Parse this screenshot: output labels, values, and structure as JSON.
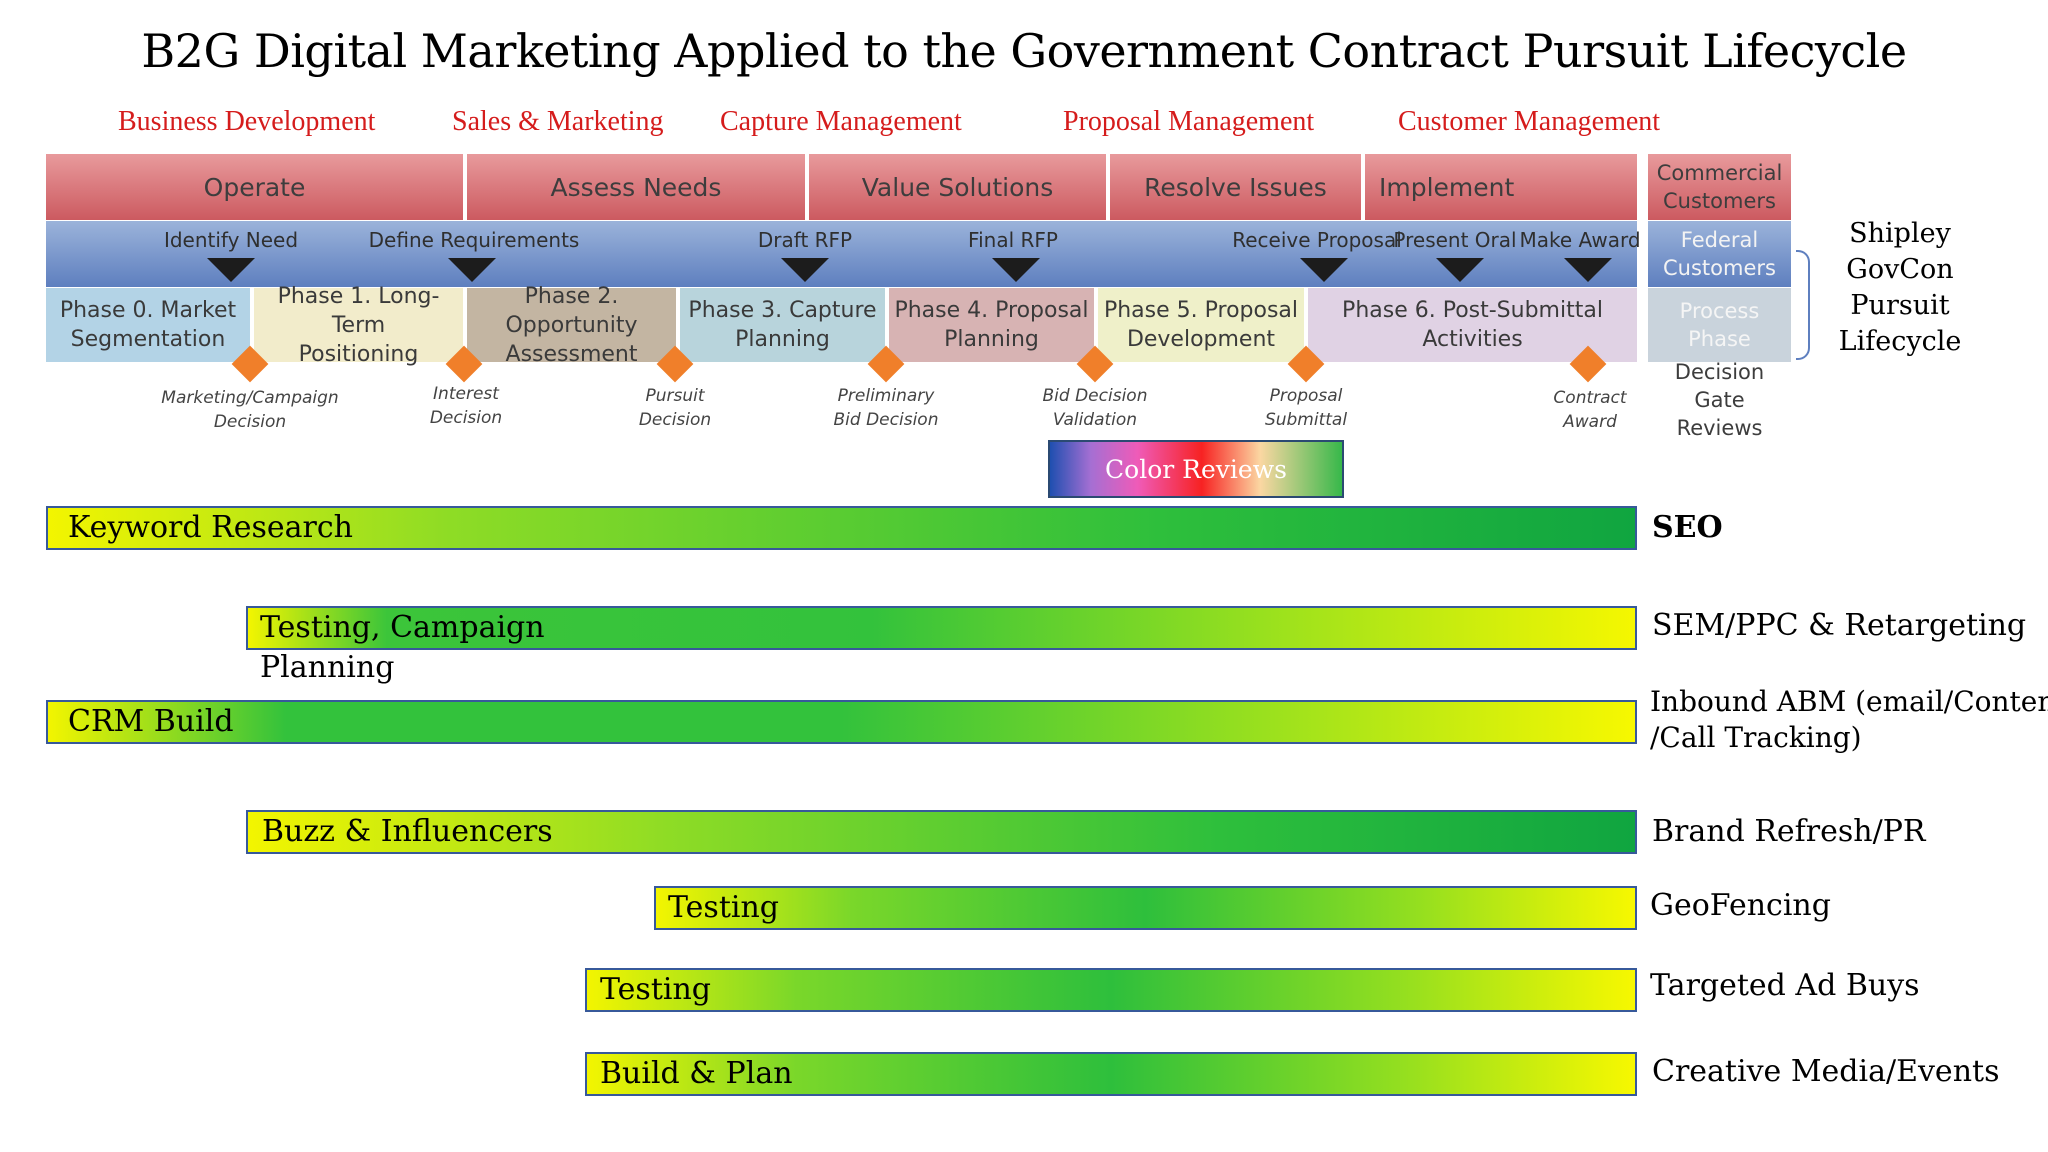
{
  "title": "B2G Digital Marketing Applied to the Government Contract Pursuit Lifecycle",
  "stages": [
    "Business Development",
    "Sales & Marketing",
    "Capture Management",
    "Proposal Management",
    "Customer Management"
  ],
  "commercial_steps": [
    "Operate",
    "Assess Needs",
    "Value Solutions",
    "Resolve Issues",
    "Implement"
  ],
  "federal_steps": [
    "Identify Need",
    "Define Requirements",
    "Draft RFP",
    "Final RFP",
    "Receive Proposal",
    "Present Oral",
    "Make Award"
  ],
  "phases": [
    {
      "line1": "Phase 0. Market",
      "line2": "Segmentation",
      "color": "#b3d3e6"
    },
    {
      "line1": "Phase 1. Long-Term",
      "line2": "Positioning",
      "color": "#f2eccb"
    },
    {
      "line1": "Phase 2. Opportunity",
      "line2": "Assessment",
      "color": "#c3b5a2"
    },
    {
      "line1": "Phase 3. Capture",
      "line2": "Planning",
      "color": "#b8d4dc"
    },
    {
      "line1": "Phase 4. Proposal",
      "line2": "Planning",
      "color": "#d7b3b3"
    },
    {
      "line1": "Phase 5. Proposal",
      "line2": "Development",
      "color": "#eff0c9"
    },
    {
      "line1": "Phase 6. Post-Submittal",
      "line2": "Activities",
      "color": "#e0d2e4"
    }
  ],
  "gates": [
    {
      "line1": "Marketing/Campaign",
      "line2": "Decision"
    },
    {
      "line1": "Interest",
      "line2": "Decision"
    },
    {
      "line1": "Pursuit",
      "line2": "Decision"
    },
    {
      "line1": "Preliminary",
      "line2": "Bid Decision"
    },
    {
      "line1": "Bid Decision",
      "line2": "Validation"
    },
    {
      "line1": "Proposal",
      "line2": "Submittal"
    },
    {
      "line1": "Contract",
      "line2": "Award"
    }
  ],
  "right_column": {
    "commercial": {
      "line1": "Commercial",
      "line2": "Customers"
    },
    "federal": {
      "line1": "Federal",
      "line2": "Customers"
    },
    "process": {
      "line1": "Process",
      "line2": "Phase"
    },
    "decision": {
      "line1": "Decision Gate",
      "line2": "Reviews"
    }
  },
  "shipley": [
    "Shipley",
    "GovCon",
    "Pursuit",
    "Lifecycle"
  ],
  "color_reviews": "Color Reviews",
  "tracks": [
    {
      "label": "Keyword Research",
      "label2": "",
      "category": "SEO",
      "category2": ""
    },
    {
      "label": "Testing, Campaign",
      "label2": "Planning",
      "category": "SEM/PPC & Retargeting",
      "category2": ""
    },
    {
      "label": "CRM Build",
      "label2": "",
      "category": "Inbound ABM (email/Content",
      "category2": "/Call Tracking)"
    },
    {
      "label": "Buzz & Influencers",
      "label2": "",
      "category": "Brand Refresh/PR",
      "category2": ""
    },
    {
      "label": "Testing",
      "label2": "",
      "category": "GeoFencing",
      "category2": ""
    },
    {
      "label": "Testing",
      "label2": "",
      "category": "Targeted Ad Buys",
      "category2": ""
    },
    {
      "label": "Build & Plan",
      "label2": "",
      "category": "Creative Media/Events",
      "category2": ""
    }
  ]
}
